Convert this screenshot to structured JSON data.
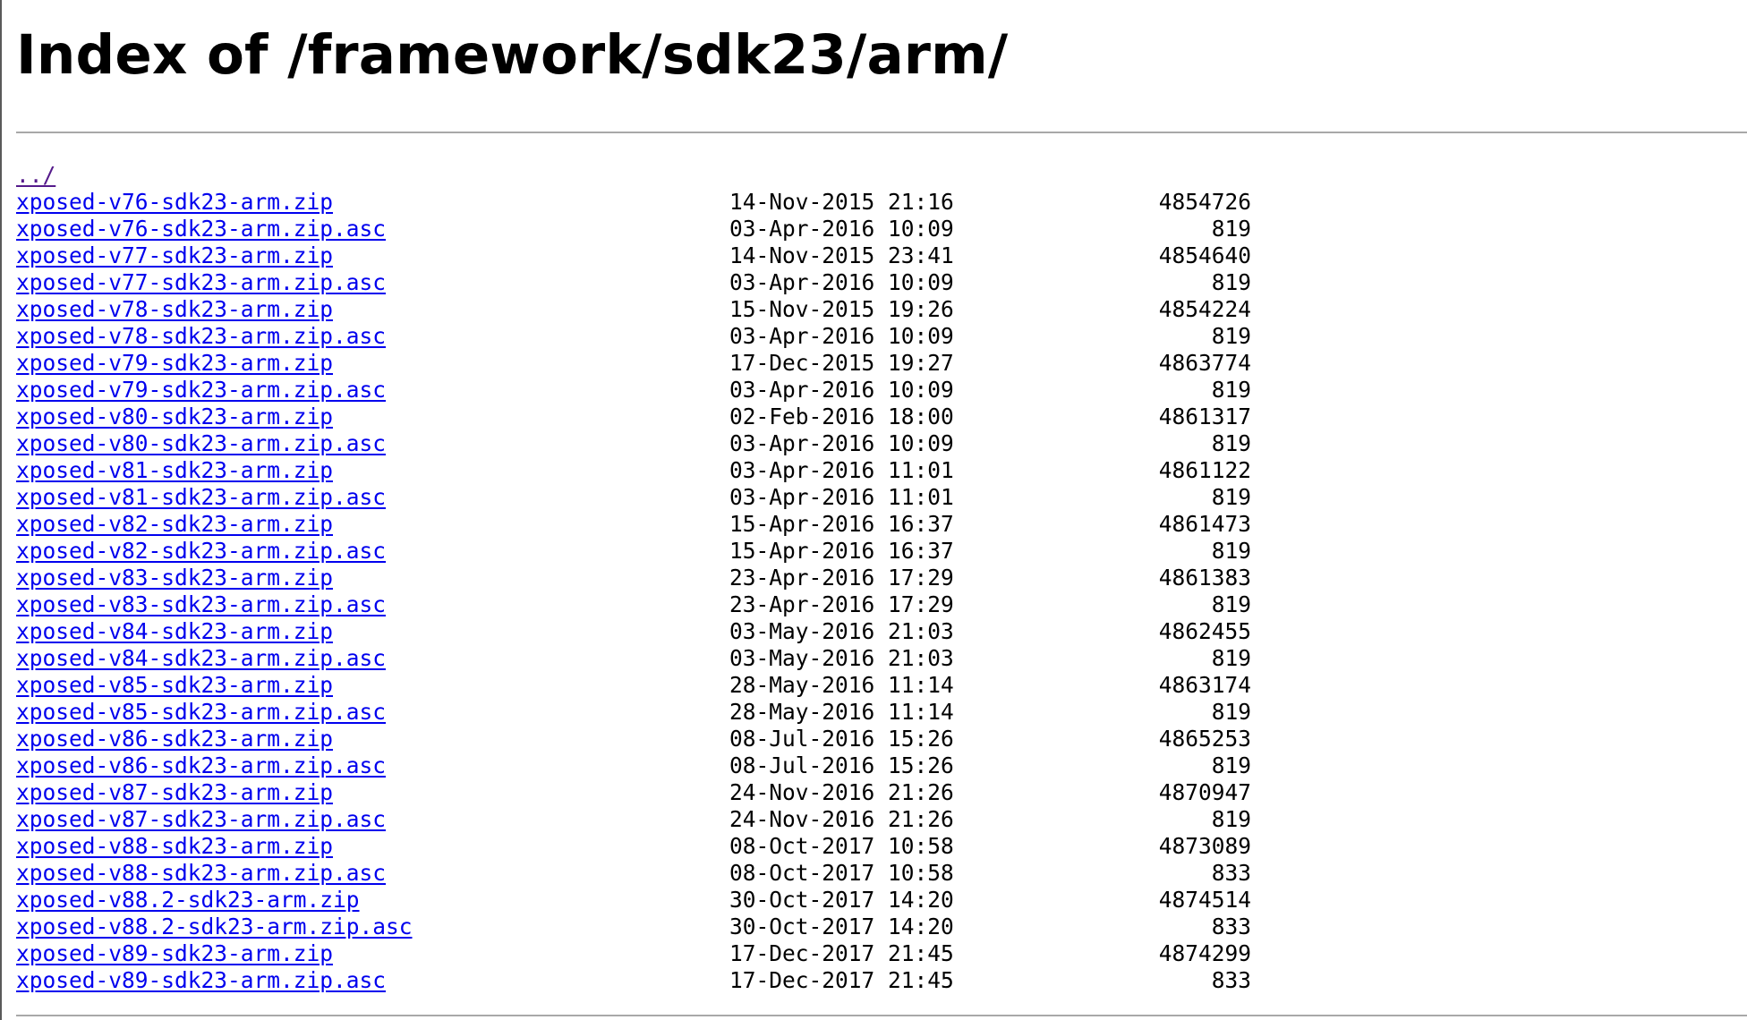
{
  "title": "Index of /framework/sdk23/arm/",
  "parent_link": "../",
  "files": [
    {
      "name": "xposed-v76-sdk23-arm.zip",
      "date": "14-Nov-2015 21:16",
      "size": "4854726"
    },
    {
      "name": "xposed-v76-sdk23-arm.zip.asc",
      "date": "03-Apr-2016 10:09",
      "size": "819"
    },
    {
      "name": "xposed-v77-sdk23-arm.zip",
      "date": "14-Nov-2015 23:41",
      "size": "4854640"
    },
    {
      "name": "xposed-v77-sdk23-arm.zip.asc",
      "date": "03-Apr-2016 10:09",
      "size": "819"
    },
    {
      "name": "xposed-v78-sdk23-arm.zip",
      "date": "15-Nov-2015 19:26",
      "size": "4854224"
    },
    {
      "name": "xposed-v78-sdk23-arm.zip.asc",
      "date": "03-Apr-2016 10:09",
      "size": "819"
    },
    {
      "name": "xposed-v79-sdk23-arm.zip",
      "date": "17-Dec-2015 19:27",
      "size": "4863774"
    },
    {
      "name": "xposed-v79-sdk23-arm.zip.asc",
      "date": "03-Apr-2016 10:09",
      "size": "819"
    },
    {
      "name": "xposed-v80-sdk23-arm.zip",
      "date": "02-Feb-2016 18:00",
      "size": "4861317"
    },
    {
      "name": "xposed-v80-sdk23-arm.zip.asc",
      "date": "03-Apr-2016 10:09",
      "size": "819"
    },
    {
      "name": "xposed-v81-sdk23-arm.zip",
      "date": "03-Apr-2016 11:01",
      "size": "4861122"
    },
    {
      "name": "xposed-v81-sdk23-arm.zip.asc",
      "date": "03-Apr-2016 11:01",
      "size": "819"
    },
    {
      "name": "xposed-v82-sdk23-arm.zip",
      "date": "15-Apr-2016 16:37",
      "size": "4861473"
    },
    {
      "name": "xposed-v82-sdk23-arm.zip.asc",
      "date": "15-Apr-2016 16:37",
      "size": "819"
    },
    {
      "name": "xposed-v83-sdk23-arm.zip",
      "date": "23-Apr-2016 17:29",
      "size": "4861383"
    },
    {
      "name": "xposed-v83-sdk23-arm.zip.asc",
      "date": "23-Apr-2016 17:29",
      "size": "819"
    },
    {
      "name": "xposed-v84-sdk23-arm.zip",
      "date": "03-May-2016 21:03",
      "size": "4862455"
    },
    {
      "name": "xposed-v84-sdk23-arm.zip.asc",
      "date": "03-May-2016 21:03",
      "size": "819"
    },
    {
      "name": "xposed-v85-sdk23-arm.zip",
      "date": "28-May-2016 11:14",
      "size": "4863174"
    },
    {
      "name": "xposed-v85-sdk23-arm.zip.asc",
      "date": "28-May-2016 11:14",
      "size": "819"
    },
    {
      "name": "xposed-v86-sdk23-arm.zip",
      "date": "08-Jul-2016 15:26",
      "size": "4865253"
    },
    {
      "name": "xposed-v86-sdk23-arm.zip.asc",
      "date": "08-Jul-2016 15:26",
      "size": "819"
    },
    {
      "name": "xposed-v87-sdk23-arm.zip",
      "date": "24-Nov-2016 21:26",
      "size": "4870947"
    },
    {
      "name": "xposed-v87-sdk23-arm.zip.asc",
      "date": "24-Nov-2016 21:26",
      "size": "819"
    },
    {
      "name": "xposed-v88-sdk23-arm.zip",
      "date": "08-Oct-2017 10:58",
      "size": "4873089"
    },
    {
      "name": "xposed-v88-sdk23-arm.zip.asc",
      "date": "08-Oct-2017 10:58",
      "size": "833"
    },
    {
      "name": "xposed-v88.2-sdk23-arm.zip",
      "date": "30-Oct-2017 14:20",
      "size": "4874514"
    },
    {
      "name": "xposed-v88.2-sdk23-arm.zip.asc",
      "date": "30-Oct-2017 14:20",
      "size": "833"
    },
    {
      "name": "xposed-v89-sdk23-arm.zip",
      "date": "17-Dec-2017 21:45",
      "size": "4874299"
    },
    {
      "name": "xposed-v89-sdk23-arm.zip.asc",
      "date": "17-Dec-2017 21:45",
      "size": "833"
    }
  ],
  "colors": {
    "link": "#0000ee",
    "visited_link": "#551a8b",
    "rule": "#a8a8a8",
    "background": "#ffffff",
    "text": "#000000"
  }
}
